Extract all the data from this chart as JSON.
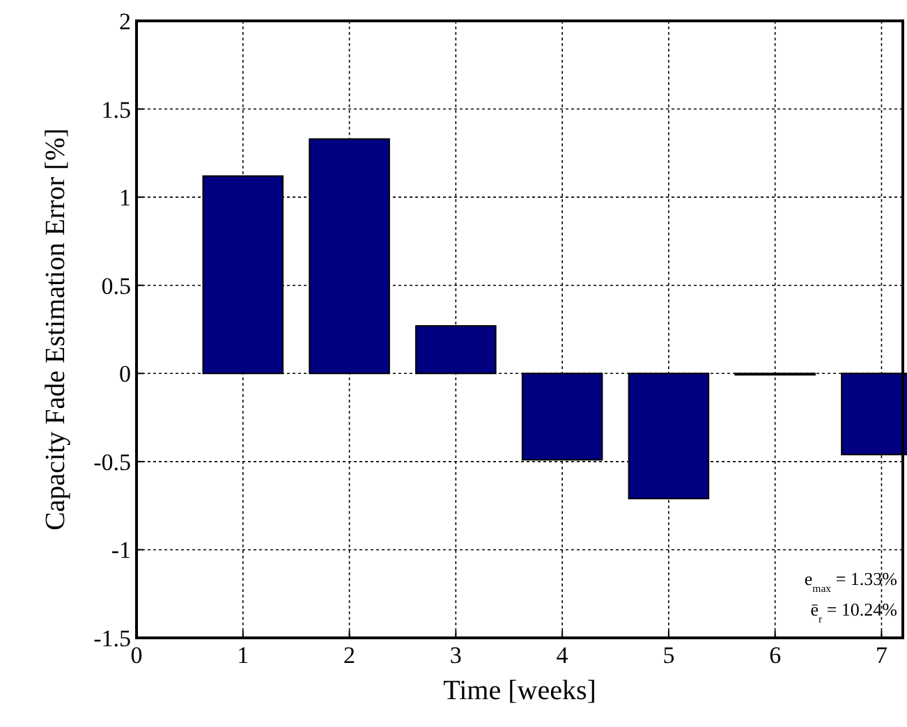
{
  "chart_data": {
    "type": "bar",
    "xlabel": "Time [weeks]",
    "ylabel": "Capacity Fade Estimation Error [%]",
    "x": [
      1,
      2,
      3,
      4,
      5,
      6,
      7
    ],
    "values": [
      1.12,
      1.33,
      0.27,
      -0.49,
      -0.71,
      0,
      -0.46
    ],
    "color": "#000080",
    "xlim": [
      0,
      7.2
    ],
    "xticks": [
      0,
      1,
      2,
      3,
      4,
      5,
      6,
      7
    ],
    "ylim": [
      -1.5,
      2
    ],
    "yticks": [
      -1.5,
      -1,
      -0.5,
      0,
      0.5,
      1,
      1.5,
      2
    ],
    "grid": true,
    "annotations": [
      "e$_{max}$ = 1.33%",
      "ē$_{r}$ = 10.24%"
    ]
  }
}
